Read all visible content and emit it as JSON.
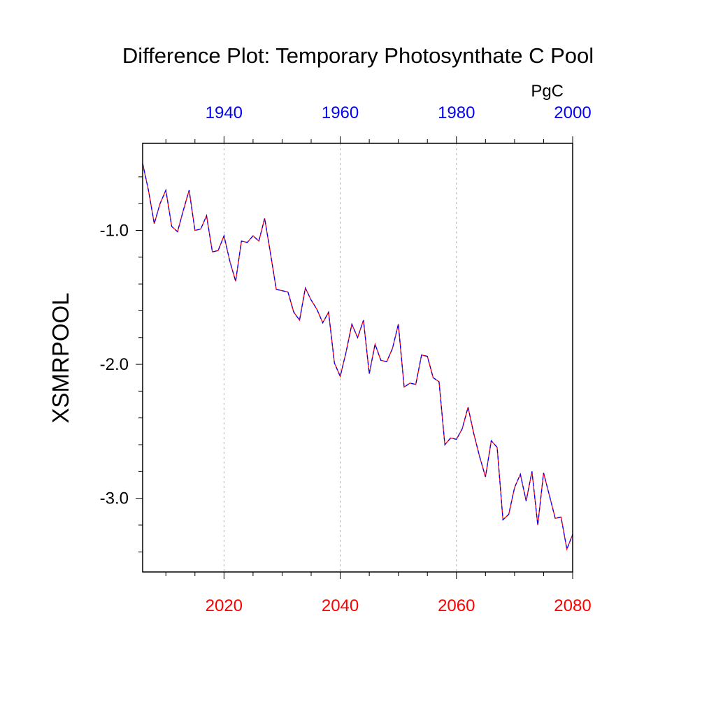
{
  "chart_data": {
    "type": "line",
    "title": "Difference Plot: Temporary Photosynthate C Pool",
    "ylabel": "XSMRPOOL",
    "units": "PgC",
    "xlim": [
      2006,
      2080
    ],
    "ylim": [
      -3.55,
      -0.35
    ],
    "bottom_axis": {
      "ticks": [
        2020,
        2040,
        2060,
        2080
      ],
      "labels": [
        "2020",
        "2040",
        "2060",
        "2080"
      ],
      "color": "#ff0000"
    },
    "top_axis": {
      "ticks": [
        1940,
        1960,
        1980,
        2000
      ],
      "labels": [
        "1940",
        "1960",
        "1980",
        "2000"
      ],
      "color": "#0000ff",
      "offset_years": -80
    },
    "y_ticks": [
      -1.0,
      -2.0,
      -3.0
    ],
    "y_tick_labels": [
      "-1.0",
      "-2.0",
      "-3.0"
    ],
    "vertical_gridlines": [
      2020,
      2040,
      2060
    ],
    "series": [
      {
        "name": "difference",
        "colors": [
          "#ff0000",
          "#0000ff"
        ],
        "x": [
          2006,
          2007,
          2008,
          2009,
          2010,
          2011,
          2012,
          2013,
          2014,
          2015,
          2016,
          2017,
          2018,
          2019,
          2020,
          2021,
          2022,
          2023,
          2024,
          2025,
          2026,
          2027,
          2028,
          2029,
          2030,
          2031,
          2032,
          2033,
          2034,
          2035,
          2036,
          2037,
          2038,
          2039,
          2040,
          2041,
          2042,
          2043,
          2044,
          2045,
          2046,
          2047,
          2048,
          2049,
          2050,
          2051,
          2052,
          2053,
          2054,
          2055,
          2056,
          2057,
          2058,
          2059,
          2060,
          2061,
          2062,
          2063,
          2064,
          2065,
          2066,
          2067,
          2068,
          2069,
          2070,
          2071,
          2072,
          2073,
          2074,
          2075,
          2076,
          2077,
          2078,
          2079,
          2080
        ],
        "values": [
          -0.5,
          -0.7,
          -0.95,
          -0.8,
          -0.7,
          -0.97,
          -1.01,
          -0.85,
          -0.7,
          -1.0,
          -0.99,
          -0.89,
          -1.16,
          -1.15,
          -1.04,
          -1.23,
          -1.38,
          -1.08,
          -1.09,
          -1.04,
          -1.08,
          -0.91,
          -1.17,
          -1.44,
          -1.45,
          -1.46,
          -1.61,
          -1.67,
          -1.43,
          -1.52,
          -1.59,
          -1.69,
          -1.61,
          -1.99,
          -2.09,
          -1.91,
          -1.7,
          -1.8,
          -1.67,
          -2.07,
          -1.85,
          -1.97,
          -1.98,
          -1.88,
          -1.7,
          -2.17,
          -2.14,
          -2.15,
          -1.93,
          -1.94,
          -2.1,
          -2.13,
          -2.6,
          -2.55,
          -2.56,
          -2.48,
          -2.32,
          -2.52,
          -2.69,
          -2.84,
          -2.57,
          -2.62,
          -3.16,
          -3.12,
          -2.92,
          -2.82,
          -3.02,
          -2.8,
          -3.2,
          -2.81,
          -2.98,
          -3.15,
          -3.14,
          -3.38,
          -3.27
        ]
      }
    ]
  }
}
